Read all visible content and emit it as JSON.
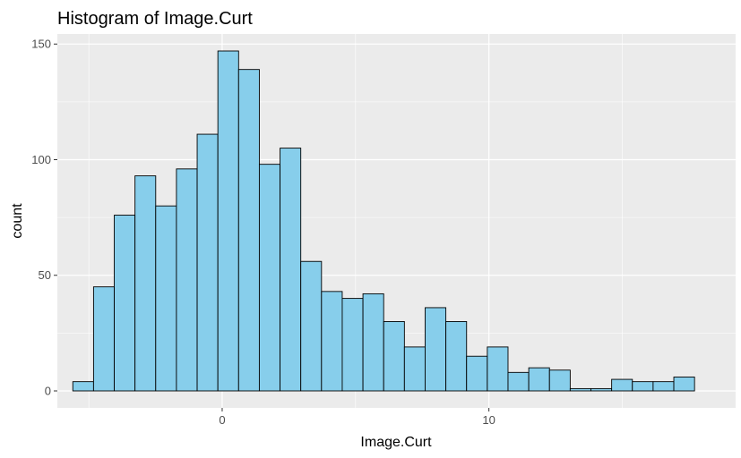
{
  "chart_data": {
    "type": "histogram",
    "title": "Histogram of Image.Curt",
    "xlabel": "Image.Curt",
    "ylabel": "count",
    "xlim": [
      -6.18,
      19.25
    ],
    "ylim": [
      -7.35,
      154.35
    ],
    "x_ticks": [
      0,
      10
    ],
    "x_tick_labels": [
      "0",
      "10"
    ],
    "y_ticks": [
      0,
      50,
      100,
      150
    ],
    "y_tick_labels": [
      "0",
      "50",
      "100",
      "150"
    ],
    "bin_width": 0.777,
    "bins": [
      {
        "x": -5.6,
        "count": 4
      },
      {
        "x": -4.823,
        "count": 45
      },
      {
        "x": -4.046,
        "count": 76
      },
      {
        "x": -3.269,
        "count": 93
      },
      {
        "x": -2.492,
        "count": 80
      },
      {
        "x": -1.715,
        "count": 96
      },
      {
        "x": -0.938,
        "count": 111
      },
      {
        "x": -0.161,
        "count": 147
      },
      {
        "x": 0.616,
        "count": 139
      },
      {
        "x": 1.393,
        "count": 98
      },
      {
        "x": 2.17,
        "count": 105
      },
      {
        "x": 2.947,
        "count": 56
      },
      {
        "x": 3.724,
        "count": 43
      },
      {
        "x": 4.501,
        "count": 40
      },
      {
        "x": 5.278,
        "count": 42
      },
      {
        "x": 6.055,
        "count": 30
      },
      {
        "x": 6.832,
        "count": 19
      },
      {
        "x": 7.609,
        "count": 36
      },
      {
        "x": 8.386,
        "count": 30
      },
      {
        "x": 9.163,
        "count": 15
      },
      {
        "x": 9.94,
        "count": 19
      },
      {
        "x": 10.717,
        "count": 8
      },
      {
        "x": 11.494,
        "count": 10
      },
      {
        "x": 12.271,
        "count": 9
      },
      {
        "x": 13.048,
        "count": 1
      },
      {
        "x": 13.825,
        "count": 1
      },
      {
        "x": 14.602,
        "count": 5
      },
      {
        "x": 15.379,
        "count": 4
      },
      {
        "x": 16.156,
        "count": 4
      },
      {
        "x": 16.933,
        "count": 6
      }
    ],
    "bar_fill": "#87ceeb",
    "bar_outline": "#000000",
    "panel_background": "#ebebeb",
    "grid_color": "#ffffff",
    "grid": true,
    "legend": "none"
  }
}
